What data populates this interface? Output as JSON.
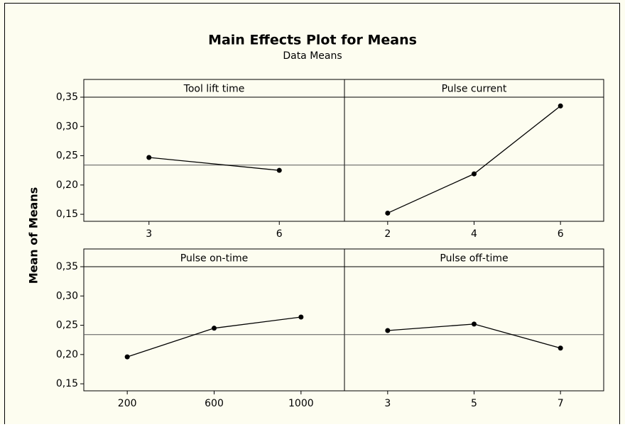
{
  "title": "Main Effects Plot for Means",
  "subtitle": "Data Means",
  "ylabel": "Mean of Means",
  "mean": 0.234,
  "chart_data": [
    {
      "type": "line",
      "title": "Tool lift time",
      "categories": [
        "3",
        "6"
      ],
      "values": [
        0.247,
        0.225
      ],
      "color": "#000000",
      "ylim": [
        0.138,
        0.35
      ],
      "yticks": [
        {
          "value": 0.15,
          "label": "0,15"
        },
        {
          "value": 0.2,
          "label": "0,20"
        },
        {
          "value": 0.25,
          "label": "0,25"
        },
        {
          "value": 0.3,
          "label": "0,30"
        },
        {
          "value": 0.35,
          "label": "0,35"
        }
      ]
    },
    {
      "type": "line",
      "title": "Pulse current",
      "categories": [
        "2",
        "4",
        "6"
      ],
      "values": [
        0.152,
        0.219,
        0.335
      ],
      "color": "#000000",
      "ylim": [
        0.138,
        0.35
      ]
    },
    {
      "type": "line",
      "title": "Pulse on-time",
      "categories": [
        "200",
        "600",
        "1000"
      ],
      "values": [
        0.196,
        0.245,
        0.264
      ],
      "color": "#000000",
      "ylim": [
        0.138,
        0.35
      ],
      "yticks": [
        {
          "value": 0.15,
          "label": "0,15"
        },
        {
          "value": 0.2,
          "label": "0,20"
        },
        {
          "value": 0.25,
          "label": "0,25"
        },
        {
          "value": 0.3,
          "label": "0,30"
        },
        {
          "value": 0.35,
          "label": "0,35"
        }
      ]
    },
    {
      "type": "line",
      "title": "Pulse off-time",
      "categories": [
        "3",
        "5",
        "7"
      ],
      "values": [
        0.241,
        0.252,
        0.211
      ],
      "color": "#000000",
      "ylim": [
        0.138,
        0.35
      ]
    }
  ]
}
